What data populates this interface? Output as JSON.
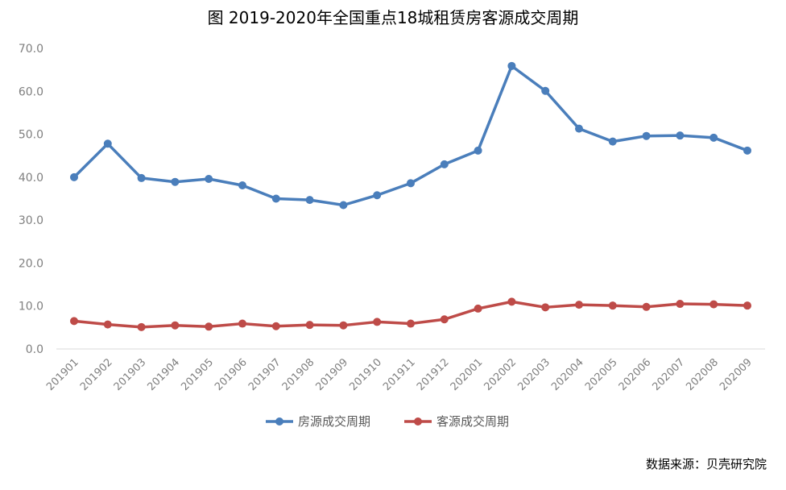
{
  "title": "图 2019-2020年全国重点18城租赁房客源成交周期",
  "source": "数据来源：贝壳研究院",
  "chart_data": {
    "type": "line",
    "title": "图 2019-2020年全国重点18城租赁房客源成交周期",
    "categories": [
      "201901",
      "201902",
      "201903",
      "201904",
      "201905",
      "201906",
      "201907",
      "201908",
      "201909",
      "201910",
      "201911",
      "201912",
      "202001",
      "202002",
      "202003",
      "202004",
      "202005",
      "202006",
      "202007",
      "202008",
      "202009"
    ],
    "ylim": [
      0,
      70
    ],
    "yticks": [
      "0.0",
      "10.0",
      "20.0",
      "30.0",
      "40.0",
      "50.0",
      "60.0",
      "70.0"
    ],
    "legend_position": "bottom",
    "grid": false,
    "series": [
      {
        "name": "房源成交周期",
        "color": "#4a7ebb",
        "values": [
          40.0,
          47.8,
          39.8,
          38.9,
          39.6,
          38.1,
          35.0,
          34.7,
          33.5,
          35.8,
          38.6,
          43.0,
          46.2,
          65.9,
          60.1,
          51.3,
          48.3,
          49.6,
          49.7,
          49.2,
          46.2
        ]
      },
      {
        "name": "客源成交周期",
        "color": "#be4b48",
        "values": [
          6.5,
          5.7,
          5.1,
          5.5,
          5.2,
          5.9,
          5.3,
          5.6,
          5.5,
          6.3,
          5.9,
          6.9,
          9.4,
          11.0,
          9.7,
          10.3,
          10.1,
          9.8,
          10.5,
          10.4,
          10.1
        ]
      }
    ]
  }
}
